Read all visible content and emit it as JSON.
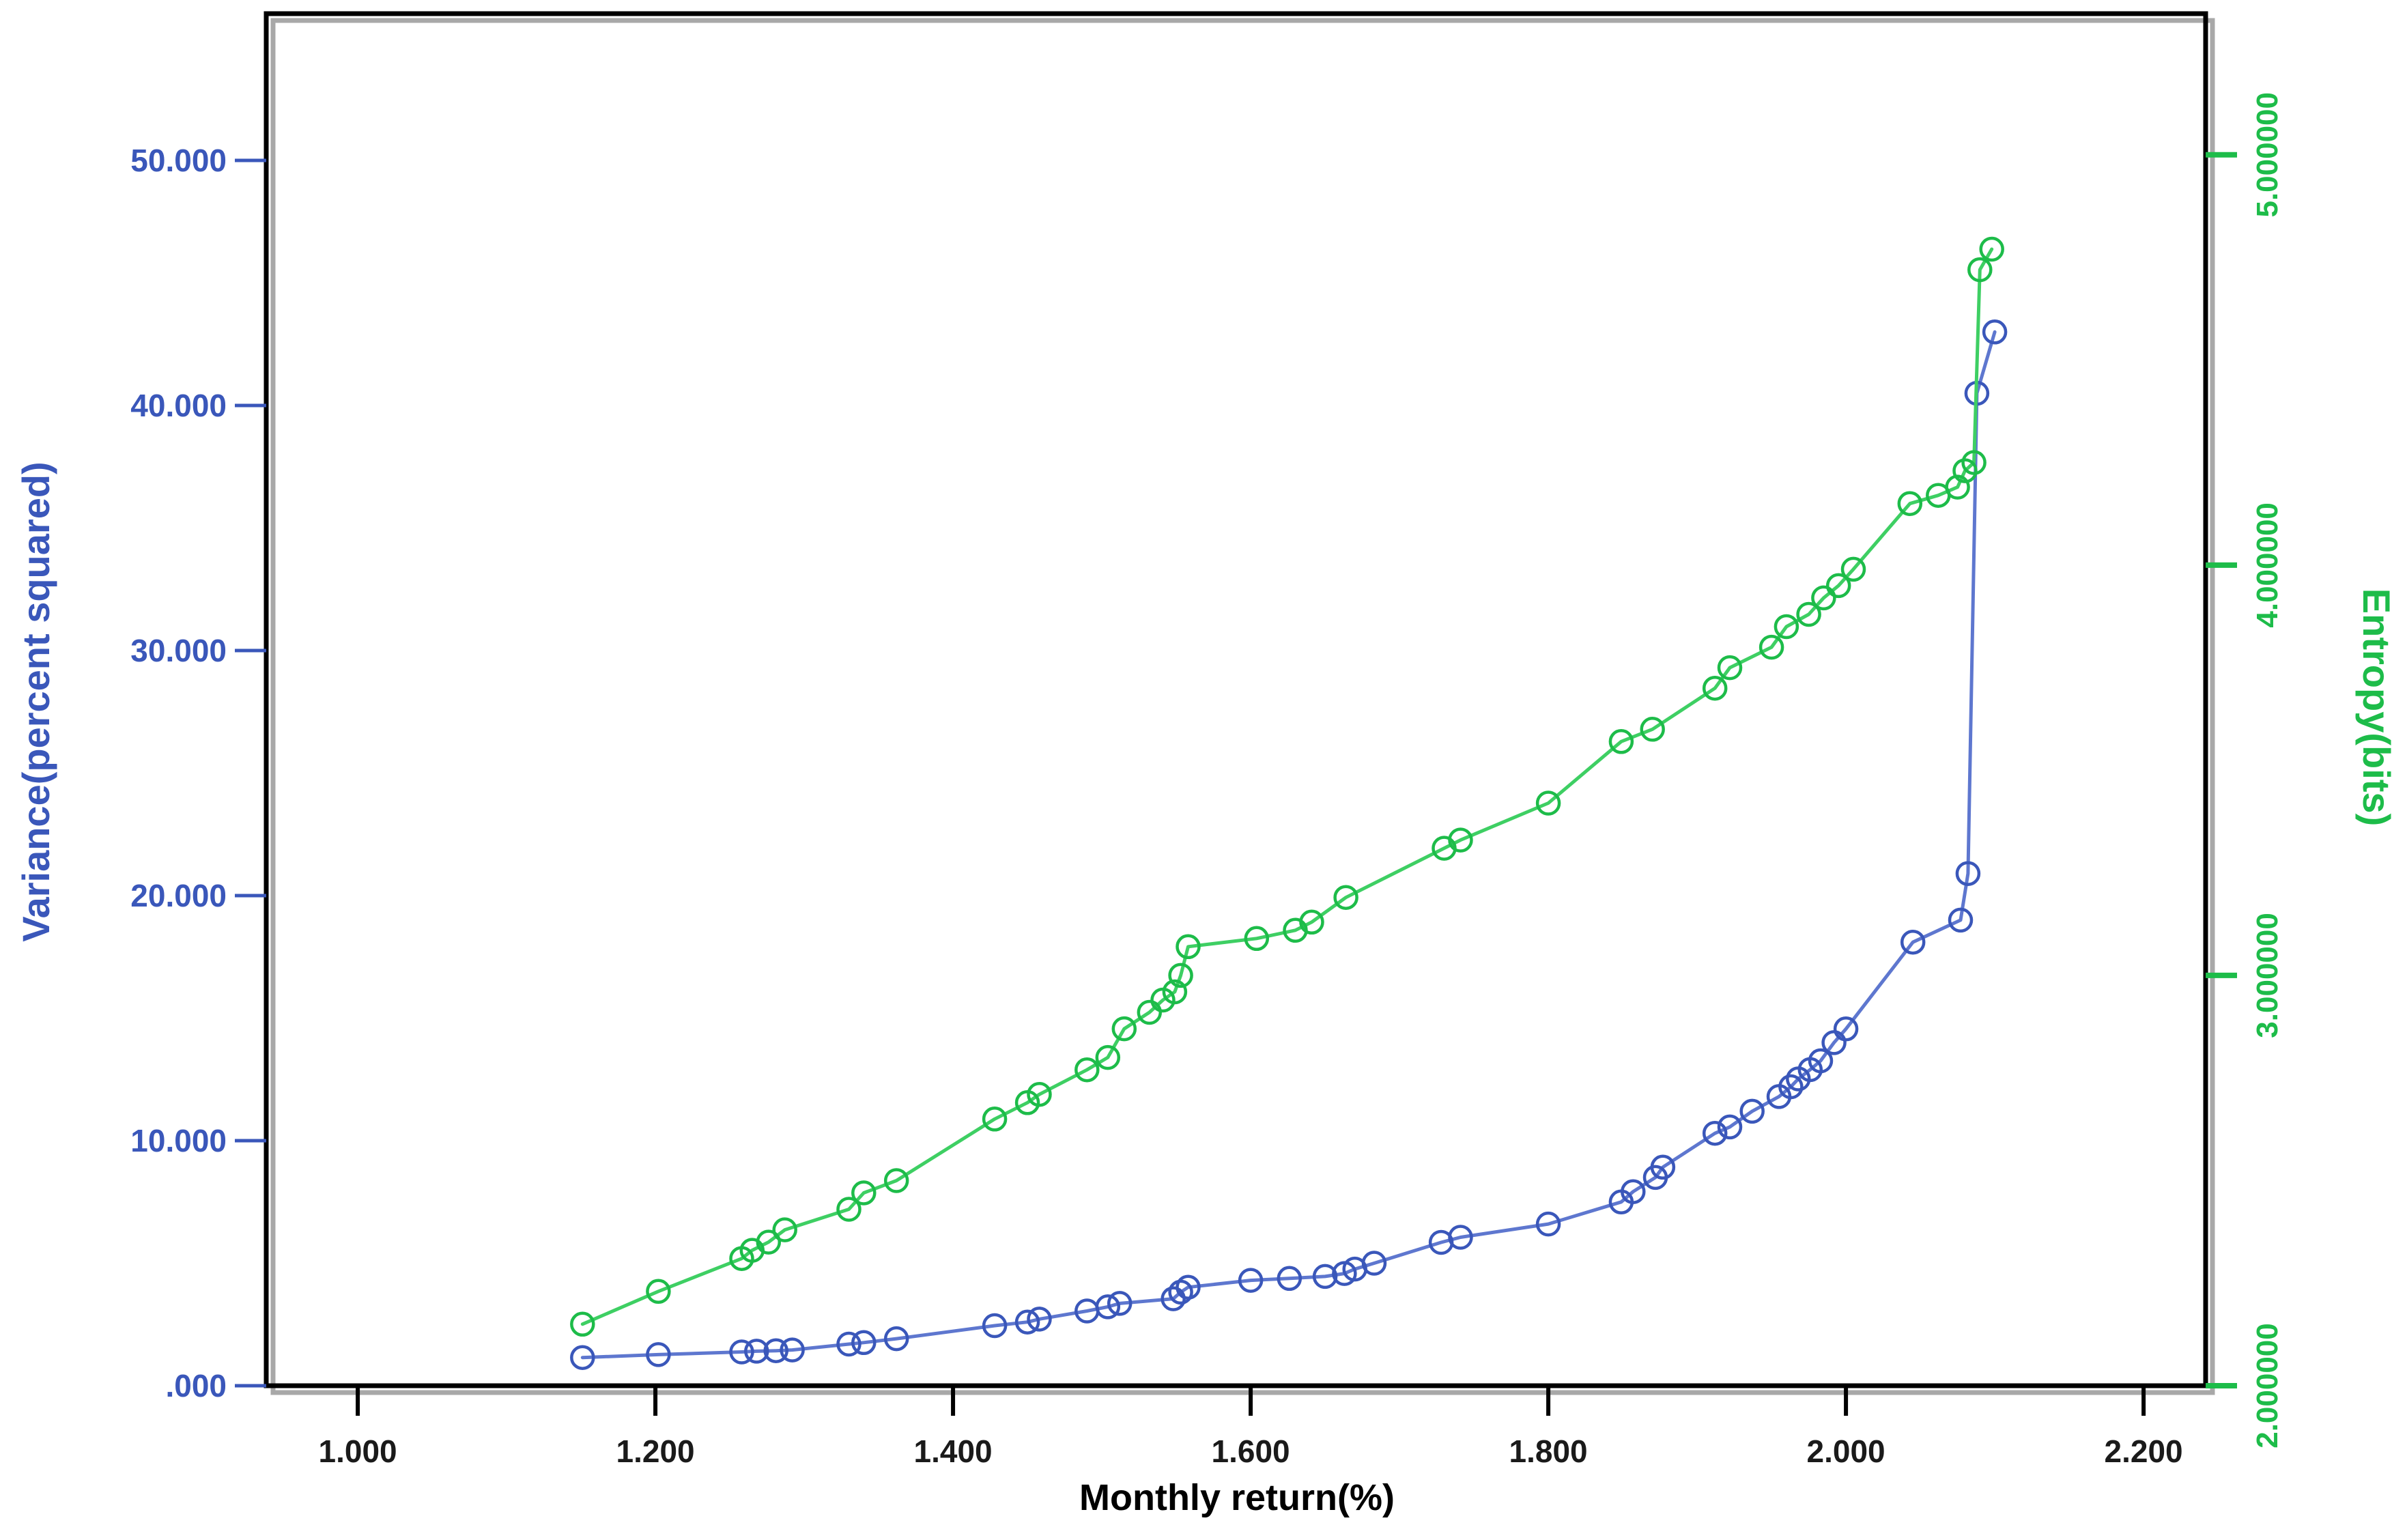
{
  "chart_data": {
    "type": "line",
    "title": "",
    "xlabel": "Monthly return(%)",
    "ylabel_left": "Variance(percent squared)",
    "ylabel_right": "Entropy(bits)",
    "legend": "none",
    "grid": false,
    "xlim": [
      0.9385,
      2.2417
    ],
    "ylim_left": [
      0,
      55.99
    ],
    "ylim_right": [
      2.0,
      5.344
    ],
    "x_ticks": {
      "labels": [
        "1.000",
        "1.200",
        "1.400",
        "1.600",
        "1.800",
        "2.000",
        "2.200"
      ],
      "values": [
        1.0,
        1.2,
        1.4,
        1.6,
        1.8,
        2.0,
        2.2
      ]
    },
    "y_left_ticks": {
      "labels": [
        ".000",
        "10.000",
        "20.000",
        "30.000",
        "40.000",
        "50.000"
      ],
      "values": [
        0,
        10,
        20,
        30,
        40,
        50
      ]
    },
    "y_right_ticks": {
      "labels": [
        "2.000000",
        "3.000000",
        "4.000000",
        "5.000000"
      ],
      "values": [
        2,
        3,
        4,
        5
      ]
    },
    "series": [
      {
        "name": "Variance(percent squared)",
        "axis": "left",
        "marker_color": "#3a57ba",
        "line_color": "#5e77cf",
        "points": [
          [
            1.151,
            1.15
          ],
          [
            1.202,
            1.27
          ],
          [
            1.258,
            1.38
          ],
          [
            1.268,
            1.41
          ],
          [
            1.281,
            1.43
          ],
          [
            1.292,
            1.46
          ],
          [
            1.33,
            1.7
          ],
          [
            1.34,
            1.76
          ],
          [
            1.362,
            1.92
          ],
          [
            1.428,
            2.45
          ],
          [
            1.45,
            2.6
          ],
          [
            1.458,
            2.72
          ],
          [
            1.49,
            3.05
          ],
          [
            1.504,
            3.22
          ],
          [
            1.512,
            3.36
          ],
          [
            1.548,
            3.55
          ],
          [
            1.553,
            3.82
          ],
          [
            1.558,
            4.02
          ],
          [
            1.6,
            4.3
          ],
          [
            1.626,
            4.38
          ],
          [
            1.65,
            4.46
          ],
          [
            1.663,
            4.58
          ],
          [
            1.67,
            4.76
          ],
          [
            1.683,
            5.0
          ],
          [
            1.728,
            5.85
          ],
          [
            1.741,
            6.06
          ],
          [
            1.8,
            6.6
          ],
          [
            1.849,
            7.5
          ],
          [
            1.857,
            7.92
          ],
          [
            1.872,
            8.5
          ],
          [
            1.877,
            8.92
          ],
          [
            1.912,
            10.3
          ],
          [
            1.922,
            10.56
          ],
          [
            1.937,
            11.2
          ],
          [
            1.955,
            11.8
          ],
          [
            1.963,
            12.2
          ],
          [
            1.968,
            12.52
          ],
          [
            1.976,
            12.9
          ],
          [
            1.983,
            13.26
          ],
          [
            1.992,
            14.0
          ],
          [
            2.0,
            14.56
          ],
          [
            2.045,
            18.1
          ],
          [
            2.077,
            19.0
          ],
          [
            2.082,
            20.9
          ],
          [
            2.088,
            40.5
          ],
          [
            2.1,
            43.0
          ]
        ]
      },
      {
        "name": "Entropy(bits)",
        "axis": "right",
        "marker_color": "#1dbc49",
        "line_color": "#3ecf63",
        "points": [
          [
            1.151,
            2.15
          ],
          [
            1.202,
            2.23
          ],
          [
            1.258,
            2.31
          ],
          [
            1.265,
            2.33
          ],
          [
            1.276,
            2.35
          ],
          [
            1.287,
            2.38
          ],
          [
            1.33,
            2.43
          ],
          [
            1.34,
            2.47
          ],
          [
            1.362,
            2.5
          ],
          [
            1.428,
            2.65
          ],
          [
            1.45,
            2.69
          ],
          [
            1.458,
            2.71
          ],
          [
            1.49,
            2.77
          ],
          [
            1.504,
            2.8
          ],
          [
            1.515,
            2.87
          ],
          [
            1.532,
            2.91
          ],
          [
            1.541,
            2.94
          ],
          [
            1.549,
            2.96
          ],
          [
            1.553,
            3.0
          ],
          [
            1.558,
            3.07
          ],
          [
            1.604,
            3.09
          ],
          [
            1.63,
            3.11
          ],
          [
            1.641,
            3.13
          ],
          [
            1.664,
            3.19
          ],
          [
            1.73,
            3.31
          ],
          [
            1.741,
            3.33
          ],
          [
            1.8,
            3.42
          ],
          [
            1.849,
            3.57
          ],
          [
            1.87,
            3.6
          ],
          [
            1.912,
            3.7
          ],
          [
            1.922,
            3.75
          ],
          [
            1.95,
            3.8
          ],
          [
            1.96,
            3.85
          ],
          [
            1.975,
            3.88
          ],
          [
            1.985,
            3.92
          ],
          [
            1.995,
            3.95
          ],
          [
            2.005,
            3.99
          ],
          [
            2.043,
            4.15
          ],
          [
            2.062,
            4.17
          ],
          [
            2.075,
            4.19
          ],
          [
            2.08,
            4.23
          ],
          [
            2.086,
            4.25
          ],
          [
            2.09,
            4.72
          ],
          [
            2.098,
            4.77
          ]
        ]
      }
    ],
    "colors": {
      "variance_blue": "#3a57ba",
      "entropy_green": "#1dbc49",
      "axis_black": "#000000",
      "frame_shadow_gray": "#a8a8a8"
    }
  }
}
